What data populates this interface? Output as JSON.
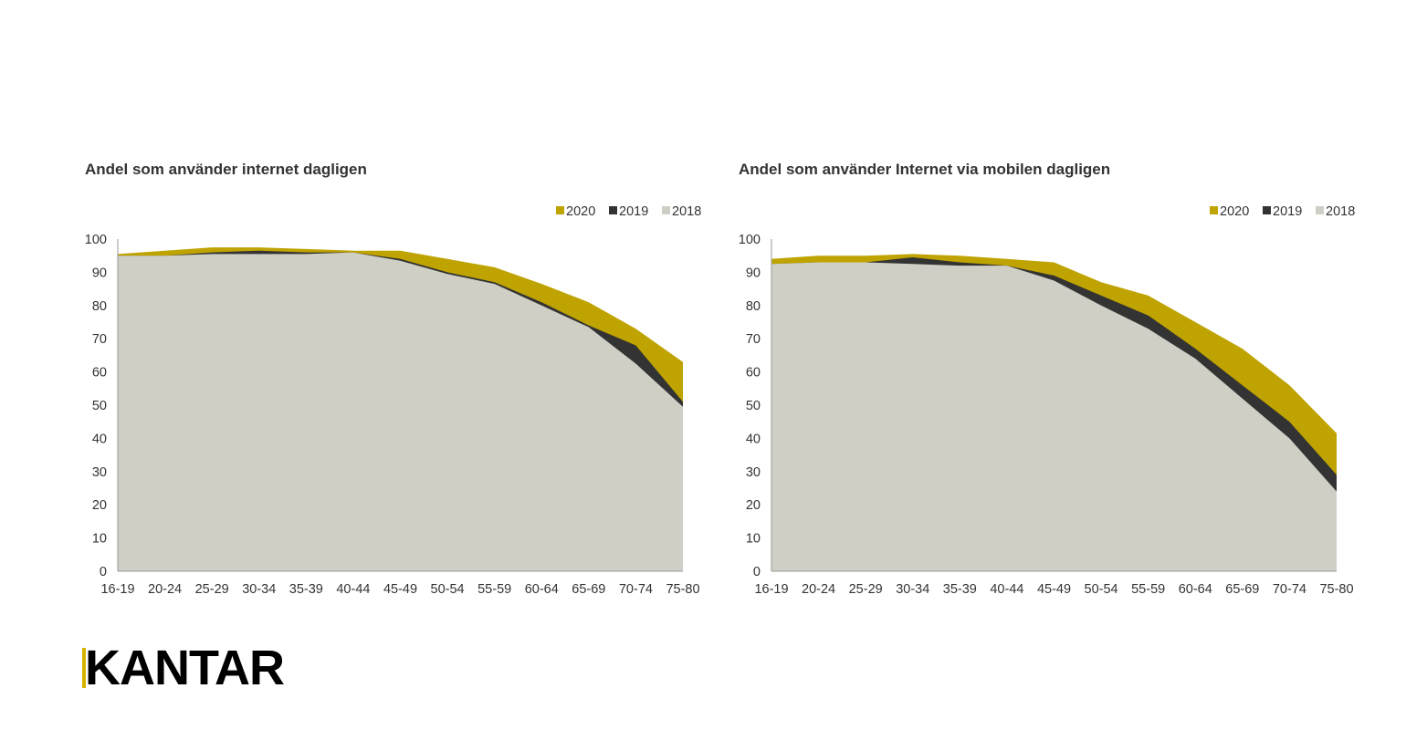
{
  "colors": {
    "c2020": "#bfa300",
    "c2019": "#333333",
    "c2018": "#cfcfc5",
    "brand_accent": "#d4b400"
  },
  "brand": {
    "logo_text": "KANTAR"
  },
  "chart_data": [
    {
      "type": "area",
      "title": "Andel som använder internet dagligen",
      "categories": [
        "16-19",
        "20-24",
        "25-29",
        "30-34",
        "35-39",
        "40-44",
        "45-49",
        "50-54",
        "55-59",
        "60-64",
        "65-69",
        "70-74",
        "75-80"
      ],
      "ylim": [
        0,
        100
      ],
      "yticks": [
        "0",
        "10",
        "20",
        "30",
        "40",
        "50",
        "60",
        "70",
        "80",
        "90",
        "100"
      ],
      "legend_position": "top-right",
      "series": [
        {
          "name": "2020",
          "values": [
            95.5,
            96.5,
            97.5,
            97.5,
            97,
            96.5,
            96.5,
            94,
            91.5,
            86.5,
            81,
            73,
            63
          ]
        },
        {
          "name": "2019",
          "values": [
            95,
            95,
            96,
            96.5,
            96,
            96,
            94,
            90,
            87,
            81,
            74,
            68,
            51
          ]
        },
        {
          "name": "2018",
          "values": [
            95,
            95,
            95.5,
            95.5,
            95.5,
            96,
            93.5,
            89.5,
            86.5,
            80,
            73.5,
            62.5,
            49.5
          ]
        }
      ]
    },
    {
      "type": "area",
      "title": "Andel som använder Internet via mobilen  dagligen",
      "categories": [
        "16-19",
        "20-24",
        "25-29",
        "30-34",
        "35-39",
        "40-44",
        "45-49",
        "50-54",
        "55-59",
        "60-64",
        "65-69",
        "70-74",
        "75-80"
      ],
      "ylim": [
        0,
        100
      ],
      "yticks": [
        "0",
        "10",
        "20",
        "30",
        "40",
        "50",
        "60",
        "70",
        "80",
        "90",
        "100"
      ],
      "legend_position": "top-right",
      "series": [
        {
          "name": "2020",
          "values": [
            94,
            95,
            95,
            95.5,
            95,
            94,
            93,
            87,
            83,
            75,
            67,
            56,
            41.5
          ]
        },
        {
          "name": "2019",
          "values": [
            92.5,
            93,
            93,
            94.5,
            93,
            92,
            89,
            83,
            77,
            67,
            56,
            45,
            29
          ]
        },
        {
          "name": "2018",
          "values": [
            92.5,
            93,
            93,
            92.5,
            92,
            92,
            87.5,
            80,
            73,
            64,
            52,
            40,
            24
          ]
        }
      ]
    }
  ]
}
